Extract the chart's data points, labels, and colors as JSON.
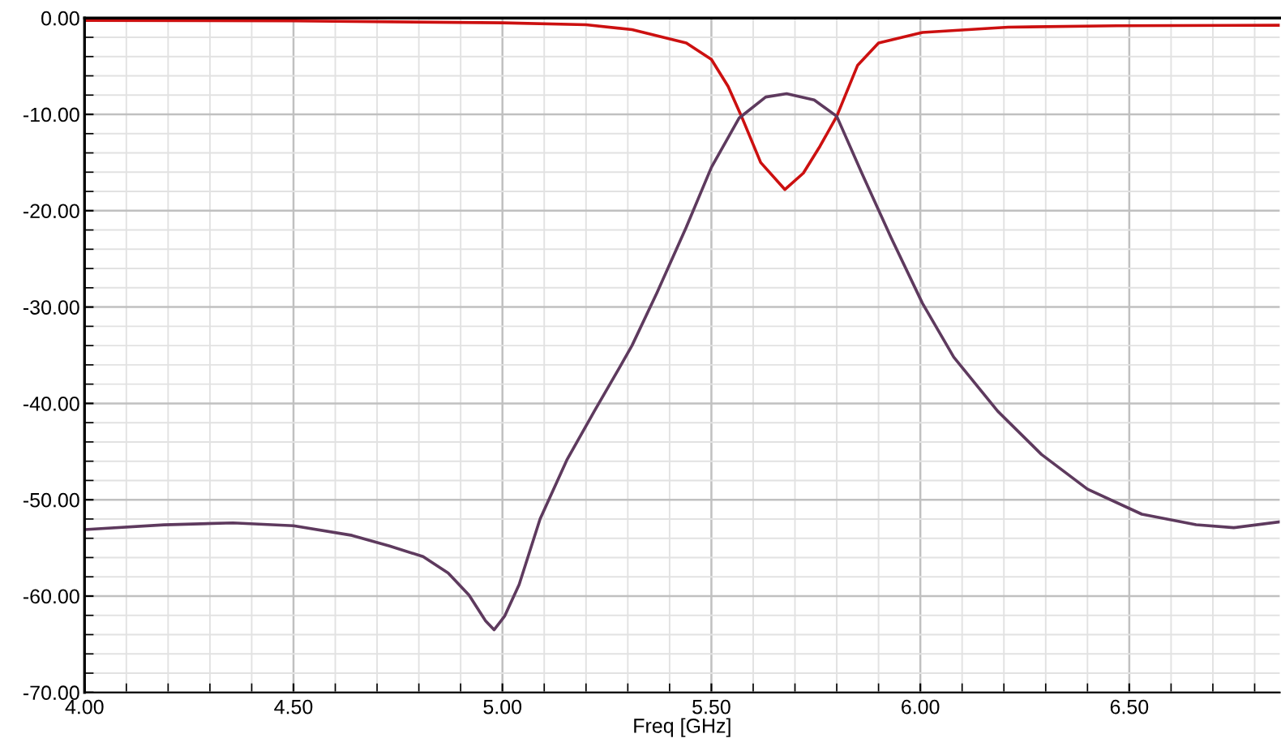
{
  "chart_data": {
    "type": "line",
    "xlabel": "Freq [GHz]",
    "xlim": [
      4.0,
      6.86
    ],
    "xticks": [
      {
        "value": 4.0,
        "label": "4.00"
      },
      {
        "value": 4.5,
        "label": "4.50"
      },
      {
        "value": 5.0,
        "label": "5.00"
      },
      {
        "value": 5.5,
        "label": "5.50"
      },
      {
        "value": 6.0,
        "label": "6.00"
      },
      {
        "value": 6.5,
        "label": "6.50"
      }
    ],
    "ylim": [
      -70,
      0
    ],
    "yticks": [
      {
        "value": 0,
        "label": "0.00"
      },
      {
        "value": -10,
        "label": "-10.00"
      },
      {
        "value": -20,
        "label": "-20.00"
      },
      {
        "value": -30,
        "label": "-30.00"
      },
      {
        "value": -40,
        "label": "-40.00"
      },
      {
        "value": -50,
        "label": "-50.00"
      },
      {
        "value": -60,
        "label": "-60.00"
      },
      {
        "value": -70,
        "label": "-70.00"
      }
    ],
    "grid": true,
    "legend": false,
    "marker": "none",
    "line_style": "solid",
    "series": [
      {
        "color": "#cc1010",
        "x": [
          4.0,
          4.5,
          5.0,
          5.2,
          5.31,
          5.44,
          5.5,
          5.54,
          5.572,
          5.618,
          5.676,
          5.72,
          5.76,
          5.8,
          5.85,
          5.9,
          6.005,
          6.21,
          6.47,
          6.86
        ],
        "values": [
          -0.25,
          -0.3,
          -0.5,
          -0.7,
          -1.2,
          -2.6,
          -4.3,
          -7.1,
          -10.2,
          -15.0,
          -17.8,
          -16.1,
          -13.3,
          -10.2,
          -4.9,
          -2.6,
          -1.5,
          -0.95,
          -0.8,
          -0.75
        ]
      },
      {
        "color": "#5e3a5e",
        "x": [
          4.0,
          4.19,
          4.355,
          4.5,
          4.64,
          4.73,
          4.81,
          4.87,
          4.92,
          4.96,
          4.98,
          5.005,
          5.04,
          5.09,
          5.155,
          5.22,
          5.28,
          5.31,
          5.37,
          5.44,
          5.5,
          5.566,
          5.63,
          5.68,
          5.746,
          5.8,
          5.86,
          5.93,
          6.005,
          6.08,
          6.185,
          6.29,
          6.4,
          6.53,
          6.66,
          6.75,
          6.86
        ],
        "values": [
          -53.1,
          -52.6,
          -52.4,
          -52.7,
          -53.7,
          -54.8,
          -55.9,
          -57.6,
          -59.9,
          -62.6,
          -63.5,
          -62.1,
          -58.8,
          -52.0,
          -45.8,
          -40.8,
          -36.3,
          -34.0,
          -28.5,
          -21.7,
          -15.5,
          -10.4,
          -8.2,
          -7.85,
          -8.5,
          -10.2,
          -16.1,
          -22.8,
          -29.6,
          -35.2,
          -40.8,
          -45.3,
          -48.9,
          -51.5,
          -52.6,
          -52.9,
          -52.3
        ]
      }
    ]
  }
}
